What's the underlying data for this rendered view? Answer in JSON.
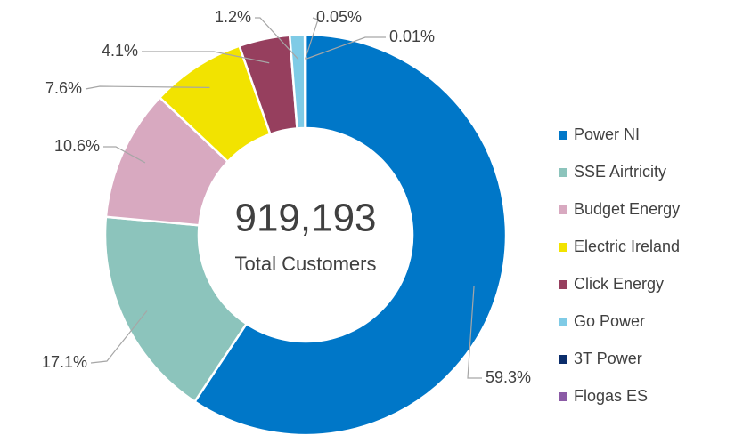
{
  "chart_data": {
    "type": "donut",
    "center_value": "919,193",
    "center_label": "Total Customers",
    "categories": [
      "Power NI",
      "SSE Airtricity",
      "Budget Energy",
      "Electric Ireland",
      "Click Energy",
      "Go Power",
      "3T Power",
      "Flogas ES"
    ],
    "values": [
      59.3,
      17.1,
      10.6,
      7.6,
      4.1,
      1.2,
      0.05,
      0.01
    ],
    "value_labels": [
      "59.3%",
      "17.1%",
      "10.6%",
      "7.6%",
      "4.1%",
      "1.2%",
      "0.05%",
      "0.01%"
    ],
    "colors": [
      "#0077c8",
      "#8cc4bc",
      "#d8a9c0",
      "#f2e300",
      "#963f5e",
      "#7fcbe6",
      "#0b2d6b",
      "#8b5ba6"
    ],
    "legend": "right"
  }
}
